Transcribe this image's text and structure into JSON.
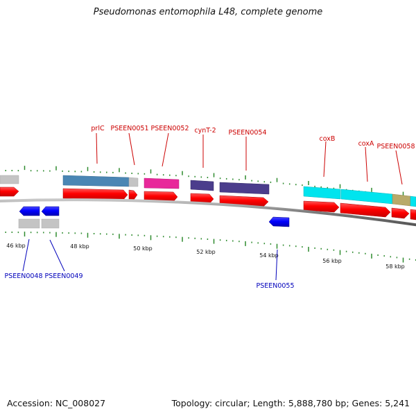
{
  "title": "Pseudomonas entomophila L48, complete genome",
  "footer": {
    "accession": "Accession: NC_008027",
    "summary": "Topology: circular; Length: 5,888,780 bp; Genes: 5,241"
  },
  "colors": {
    "forward_label": "#cc0000",
    "reverse_label": "#0000bb",
    "backbone": "#808080",
    "tick": "#2e8b2e",
    "cds_forward": "#ff0000",
    "cds_reverse": "#0000ff"
  },
  "ticks": {
    "labels": [
      "46 kbp",
      "48 kbp",
      "50 kbp",
      "52 kbp",
      "54 kbp",
      "56 kbp",
      "58 kbp"
    ]
  },
  "genes": {
    "forward": [
      {
        "name": "prlC"
      },
      {
        "name": "PSEEN0051"
      },
      {
        "name": "PSEEN0052"
      },
      {
        "name": "cynT-2"
      },
      {
        "name": "PSEEN0054"
      },
      {
        "name": "coxB"
      },
      {
        "name": "coxA"
      },
      {
        "name": "PSEEN0058"
      }
    ],
    "reverse": [
      {
        "name": "PSEEN0048"
      },
      {
        "name": "PSEEN0049"
      },
      {
        "name": "PSEEN0055"
      }
    ]
  }
}
